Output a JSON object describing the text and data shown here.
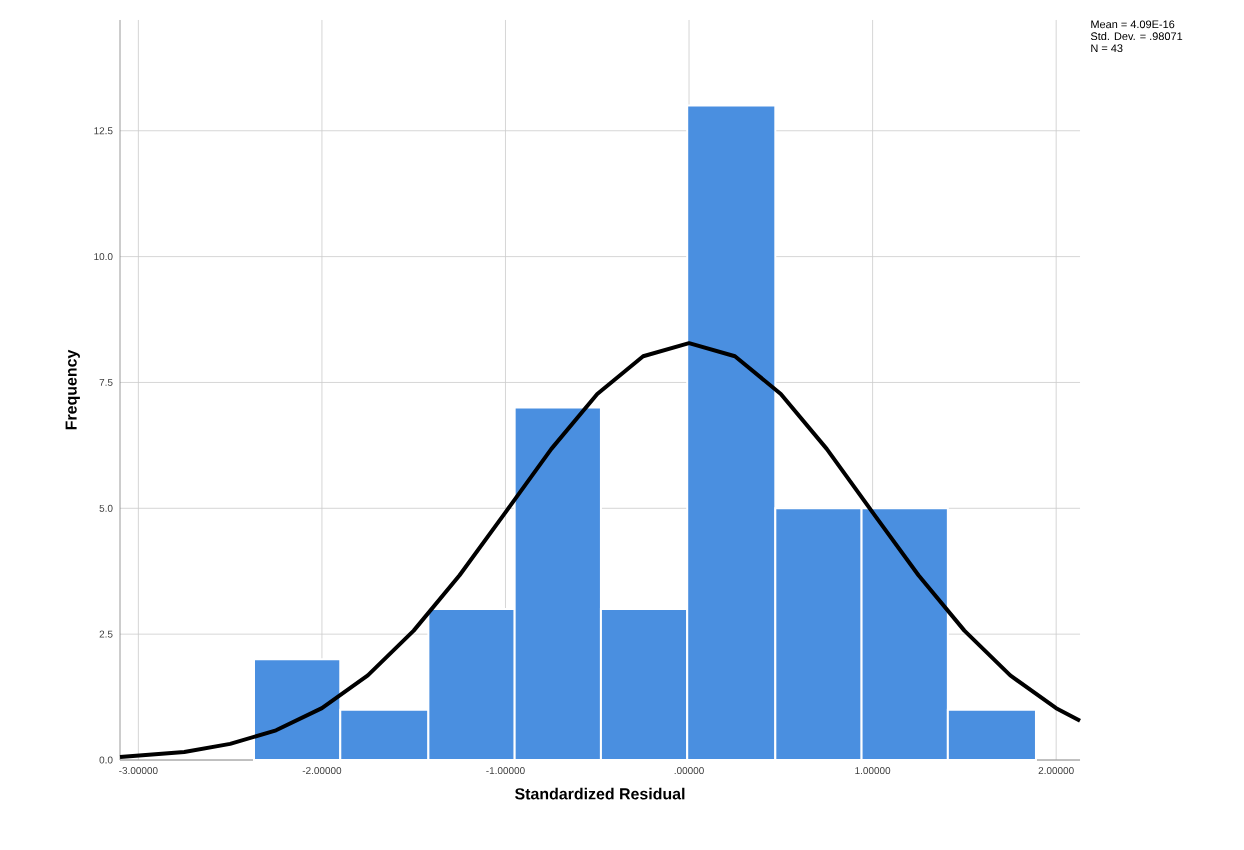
{
  "chart_data": {
    "type": "histogram",
    "xlabel": "Standardized Residual",
    "ylabel": "Frequency",
    "bins": [
      -2.37,
      -1.9,
      -1.42,
      -0.95,
      -0.48,
      -0.01,
      0.47,
      0.94,
      1.41,
      1.89
    ],
    "values": [
      2,
      1,
      3,
      7,
      3,
      13,
      5,
      5,
      1
    ],
    "color": "#4a8fe0",
    "series": [
      {
        "type": "line",
        "color": "#000000",
        "x": [
          -3.1,
          -2.75,
          -2.5,
          -2.25,
          -2,
          -1.75,
          -1.5,
          -1.25,
          -1,
          -0.75,
          -0.5,
          -0.25,
          0,
          0.25,
          0.5,
          0.75,
          1,
          1.25,
          1.5,
          1.75,
          2,
          2.13
        ],
        "values": [
          0.06,
          0.16,
          0.32,
          0.59,
          1.03,
          1.68,
          2.57,
          3.67,
          4.92,
          6.18,
          7.27,
          8.02,
          8.28,
          8.02,
          7.27,
          6.18,
          4.92,
          3.67,
          2.57,
          1.68,
          1.03,
          0.78
        ]
      }
    ],
    "xlim": [
      -3.1,
      2.13
    ],
    "ylim": [
      0,
      14.7
    ],
    "xticks": [
      {
        "value": -3,
        "label": "-3.00000"
      },
      {
        "value": -2,
        "label": "-2.00000"
      },
      {
        "value": -1,
        "label": "-1.00000"
      },
      {
        "value": 0,
        "label": ".00000"
      },
      {
        "value": 1,
        "label": "1.00000"
      },
      {
        "value": 2,
        "label": "2.00000"
      }
    ],
    "yticks": [
      {
        "value": 0,
        "label": "0.0"
      },
      {
        "value": 2.5,
        "label": "2.5"
      },
      {
        "value": 5,
        "label": "5.0"
      },
      {
        "value": 7.5,
        "label": "7.5"
      },
      {
        "value": 10,
        "label": "10.0"
      },
      {
        "value": 12.5,
        "label": "12.5"
      }
    ],
    "grid": true,
    "annotations": [
      "Mean = 4.09E-16",
      "Std. Dev. = .98071",
      "N = 43"
    ]
  }
}
